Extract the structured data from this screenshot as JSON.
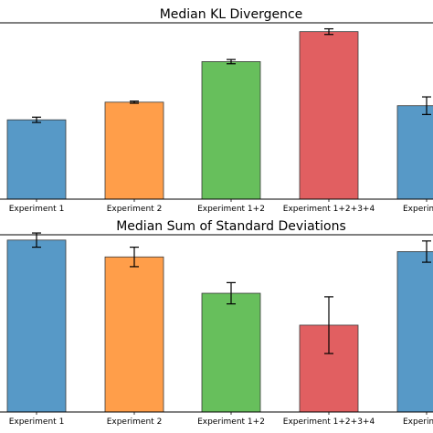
{
  "chart_data": [
    {
      "type": "bar",
      "title": "Median KL Divergence",
      "categories": [
        "Experiment 1",
        "Experiment 2",
        "Experiment 1+2",
        "Experiment 1+2+3+4",
        "Experiment"
      ],
      "values": [
        0.45,
        0.55,
        0.78,
        0.95,
        0.53
      ],
      "errors": [
        0.015,
        0.006,
        0.012,
        0.016,
        0.05
      ],
      "ylim": [
        0,
        1.0
      ],
      "colors": [
        "#5799c7",
        "#ff9e4a",
        "#67bf5c",
        "#e15f61",
        "#5799c7"
      ],
      "xlabel": "",
      "ylabel": ""
    },
    {
      "type": "bar",
      "title": "Median Sum of Standard Deviations",
      "categories": [
        "Experiment 1",
        "Experiment 2",
        "Experiment 1+2",
        "Experiment 1+2+3+4",
        "Experiment"
      ],
      "values": [
        0.97,
        0.875,
        0.67,
        0.49,
        0.905
      ],
      "errors": [
        0.04,
        0.055,
        0.06,
        0.16,
        0.06
      ],
      "ylim": [
        0,
        1.0
      ],
      "colors": [
        "#5799c7",
        "#ff9e4a",
        "#67bf5c",
        "#e15f61",
        "#5799c7"
      ],
      "xlabel": "",
      "ylabel": ""
    }
  ]
}
